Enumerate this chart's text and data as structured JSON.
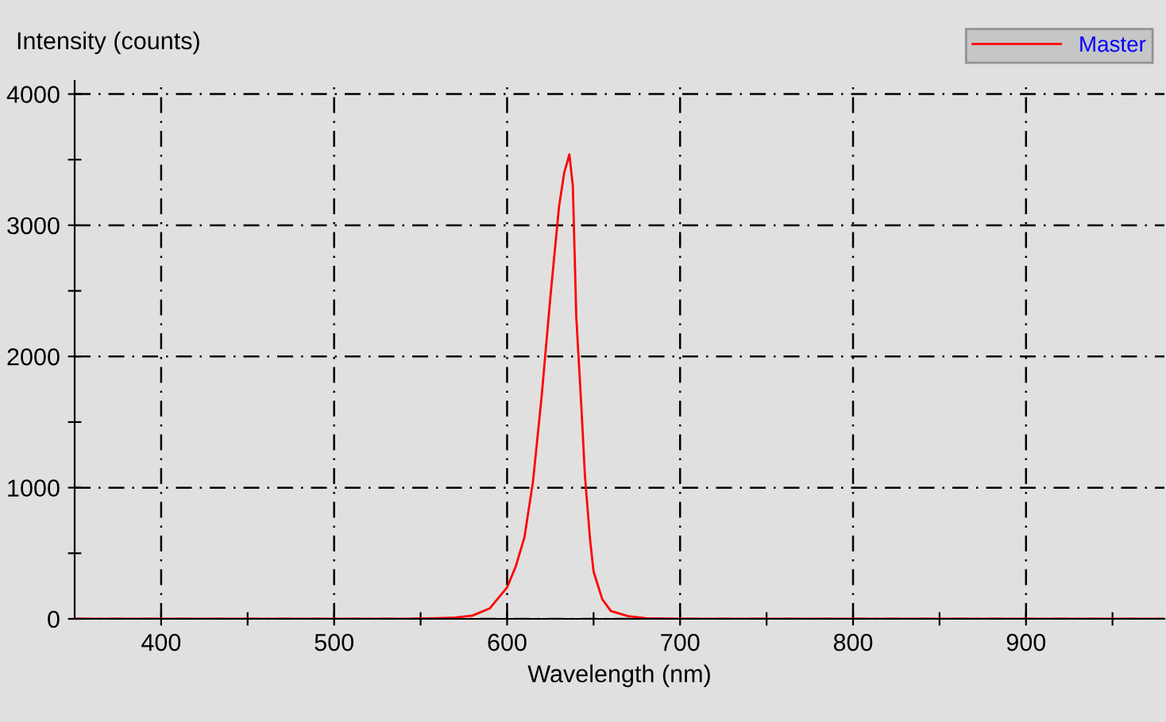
{
  "chart_data": {
    "type": "line",
    "xlabel": "Wavelength (nm)",
    "ylabel": "Intensity (counts)",
    "xlim": [
      350,
      980
    ],
    "ylim": [
      0,
      4100
    ],
    "xticks": [
      400,
      {
        "value": 450,
        "label": null
      },
      500,
      {
        "value": 550,
        "label": null
      },
      600,
      {
        "value": 650,
        "label": null
      },
      700,
      {
        "value": 750,
        "label": null
      },
      800,
      {
        "value": 850,
        "label": null
      },
      900,
      {
        "value": 950,
        "label": null
      }
    ],
    "yticks": [
      0,
      {
        "value": 500,
        "label": null
      },
      1000,
      {
        "value": 1500,
        "label": null
      },
      2000,
      {
        "value": 2500,
        "label": null
      },
      3000,
      {
        "value": 3500,
        "label": null
      },
      4000
    ],
    "grid": true,
    "legend": "top right",
    "line_style": "solid",
    "marker": "none",
    "series": [
      {
        "name": "Master",
        "color": "#ff0000",
        "x": [
          350,
          400,
          450,
          500,
          540,
          560,
          570,
          580,
          590,
          600,
          605,
          610,
          615,
          620,
          625,
          630,
          633,
          636,
          638,
          640,
          643,
          645,
          648,
          650,
          655,
          660,
          670,
          680,
          700,
          750,
          800,
          850,
          900,
          950,
          980
        ],
        "values": [
          0,
          0,
          0,
          0,
          0,
          5,
          10,
          25,
          80,
          240,
          400,
          620,
          1050,
          1700,
          2450,
          3140,
          3400,
          3540,
          3300,
          2300,
          1600,
          1090,
          600,
          360,
          150,
          60,
          20,
          5,
          0,
          0,
          0,
          0,
          0,
          0,
          0
        ]
      }
    ]
  }
}
